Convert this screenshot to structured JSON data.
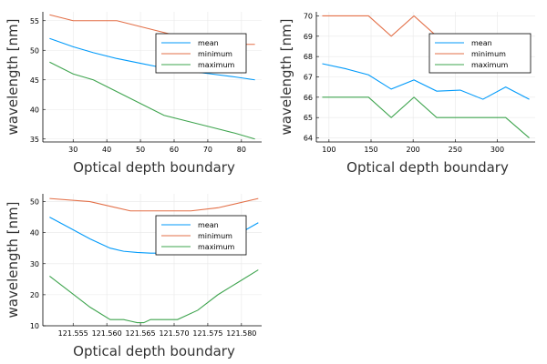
{
  "colors": {
    "mean": "#009AFA",
    "minimum": "#E36F47",
    "maximum": "#3EA44E",
    "grid": "#e8e8e8",
    "axis": "#000000"
  },
  "chart_data": [
    {
      "type": "line",
      "xlabel": "Optical depth boundary",
      "ylabel": "wavelength [nm]",
      "xlim": [
        21,
        86
      ],
      "ylim": [
        34.5,
        56.5
      ],
      "xticks": [
        30,
        40,
        50,
        60,
        70,
        80
      ],
      "xtick_labels": [
        "30",
        "40",
        "50",
        "60",
        "70",
        "80"
      ],
      "yticks": [
        35,
        40,
        45,
        50,
        55
      ],
      "ytick_labels": [
        "35",
        "40",
        "45",
        "50",
        "55"
      ],
      "grid": true,
      "legend_position": "top-right",
      "series": [
        {
          "name": "mean",
          "x": [
            23,
            30,
            36,
            43,
            50,
            57,
            64,
            71,
            78,
            84
          ],
          "y": [
            52,
            50.6,
            49.6,
            48.6,
            47.8,
            47,
            46.5,
            46,
            45.5,
            45
          ]
        },
        {
          "name": "minimum",
          "x": [
            23,
            30,
            36,
            43,
            57,
            64,
            78,
            84
          ],
          "y": [
            56,
            55,
            55,
            55,
            53,
            52,
            51,
            51
          ]
        },
        {
          "name": "maximum",
          "x": [
            23,
            30,
            36,
            43,
            50,
            57,
            64,
            71,
            78,
            84
          ],
          "y": [
            48,
            46,
            45,
            43,
            41,
            39,
            38,
            37,
            36,
            35
          ]
        }
      ]
    },
    {
      "type": "line",
      "xlabel": "Optical depth boundary",
      "ylabel": "wavelength [nm]",
      "xlim": [
        85,
        345
      ],
      "ylim": [
        63.8,
        70.2
      ],
      "xticks": [
        100,
        150,
        200,
        250,
        300
      ],
      "xtick_labels": [
        "100",
        "150",
        "200",
        "250",
        "300"
      ],
      "yticks": [
        64,
        65,
        66,
        67,
        68,
        69,
        70
      ],
      "ytick_labels": [
        "64",
        "65",
        "66",
        "67",
        "68",
        "69",
        "70"
      ],
      "grid": true,
      "legend_position": "top-right",
      "series": [
        {
          "name": "mean",
          "x": [
            92,
            120,
            147,
            174,
            201,
            228,
            256,
            283,
            310,
            338
          ],
          "y": [
            67.65,
            67.4,
            67.1,
            66.4,
            66.85,
            66.3,
            66.35,
            65.9,
            66.5,
            65.9
          ]
        },
        {
          "name": "minimum",
          "x": [
            92,
            120,
            147,
            174,
            201,
            228,
            256,
            283,
            310,
            338
          ],
          "y": [
            70,
            70,
            70,
            69,
            70,
            69,
            69,
            69,
            69,
            68
          ]
        },
        {
          "name": "maximum",
          "x": [
            92,
            120,
            147,
            174,
            201,
            228,
            256,
            283,
            310,
            338
          ],
          "y": [
            66,
            66,
            66,
            65,
            66,
            65,
            65,
            65,
            65,
            64
          ]
        }
      ]
    },
    {
      "type": "line",
      "xlabel": "Optical depth boundary",
      "ylabel": "wavelength [nm]",
      "xlim": [
        121.5505,
        121.583
      ],
      "ylim": [
        10,
        52.5
      ],
      "xticks": [
        121.555,
        121.56,
        121.565,
        121.57,
        121.575,
        121.58
      ],
      "xtick_labels": [
        "121.555",
        "121.560",
        "121.565",
        "121.570",
        "121.575",
        "121.580"
      ],
      "yticks": [
        10,
        20,
        30,
        40,
        50
      ],
      "ytick_labels": [
        "10",
        "20",
        "30",
        "40",
        "50"
      ],
      "grid": true,
      "legend_position": "top-right",
      "series": [
        {
          "name": "mean",
          "x": [
            121.5515,
            121.5545,
            121.5575,
            121.5605,
            121.5625,
            121.5645,
            121.5665,
            121.5685,
            121.5705,
            121.5735,
            121.5765,
            121.5795,
            121.5825
          ],
          "y": [
            45,
            41.5,
            38,
            35,
            34,
            33.6,
            33.4,
            33.4,
            33.7,
            34.8,
            36.8,
            39.5,
            43.2
          ]
        },
        {
          "name": "minimum",
          "x": [
            121.5515,
            121.5575,
            121.5635,
            121.5665,
            121.5725,
            121.5765,
            121.5825
          ],
          "y": [
            51,
            50,
            47,
            47,
            47,
            48,
            51
          ]
        },
        {
          "name": "maximum",
          "x": [
            121.5515,
            121.5545,
            121.5575,
            121.5605,
            121.5625,
            121.5635,
            121.5645,
            121.5655,
            121.5665,
            121.5685,
            121.5705,
            121.5735,
            121.5765,
            121.5795,
            121.5825
          ],
          "y": [
            26,
            21,
            16,
            12,
            12,
            11.5,
            11,
            11,
            12,
            12,
            12,
            15,
            20,
            24,
            28
          ]
        }
      ]
    }
  ]
}
